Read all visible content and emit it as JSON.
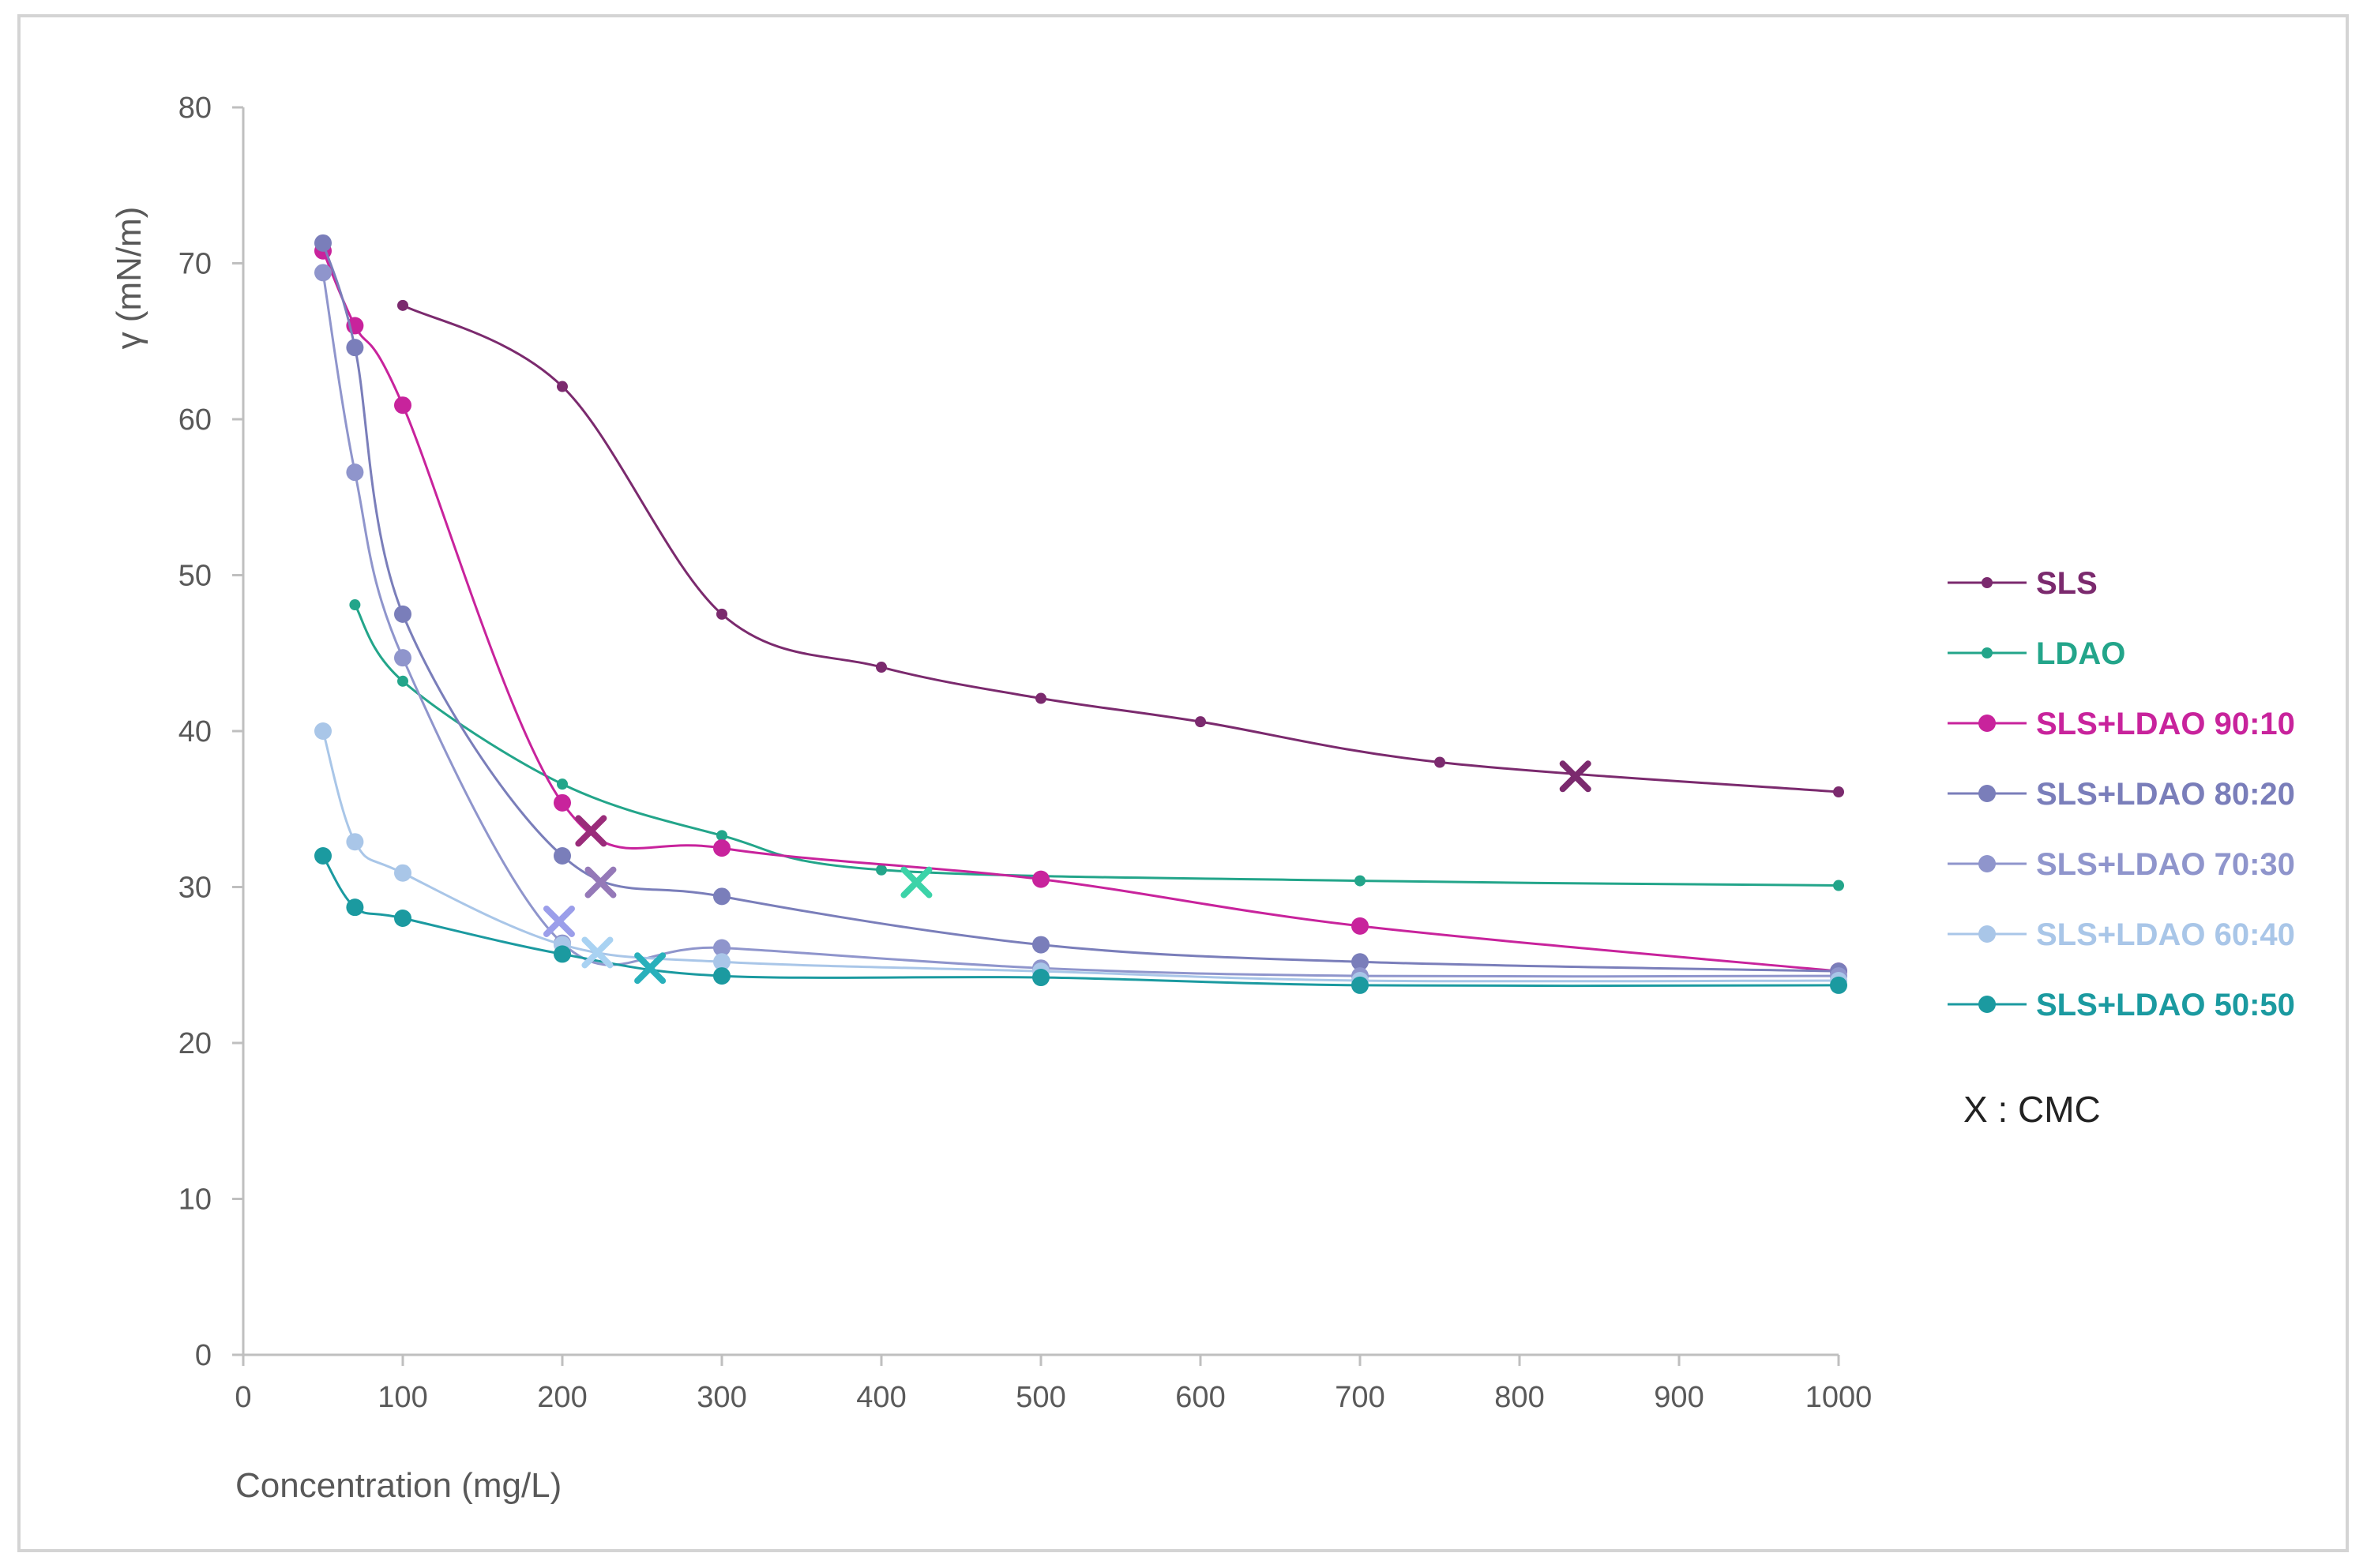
{
  "chart_data": {
    "type": "line",
    "title": "",
    "xlabel": "Concentration (mg/L)",
    "ylabel": "γ (mN/m)",
    "xlim": [
      0,
      1000
    ],
    "ylim": [
      0,
      80
    ],
    "x_ticks": [
      0,
      100,
      200,
      300,
      400,
      500,
      600,
      700,
      800,
      900,
      1000
    ],
    "y_ticks": [
      0,
      10,
      20,
      30,
      40,
      50,
      60,
      70,
      80
    ],
    "grid": false,
    "legend_position": "right",
    "cmc_note": "X : CMC",
    "series": [
      {
        "name": "SLS",
        "color": "#7b2a6e",
        "marker": "small",
        "points": [
          [
            100,
            67.3
          ],
          [
            200,
            62.1
          ],
          [
            300,
            47.5
          ],
          [
            400,
            44.1
          ],
          [
            500,
            42.1
          ],
          [
            600,
            40.6
          ],
          [
            750,
            38.0
          ],
          [
            1000,
            36.1
          ]
        ],
        "cmc": [
          835,
          37.1
        ]
      },
      {
        "name": "LDAO",
        "color": "#23a58a",
        "marker": "small",
        "points": [
          [
            70,
            48.1
          ],
          [
            100,
            43.2
          ],
          [
            200,
            36.6
          ],
          [
            300,
            33.3
          ],
          [
            400,
            31.1
          ],
          [
            700,
            30.4
          ],
          [
            1000,
            30.1
          ]
        ],
        "cmc": [
          422,
          30.3
        ]
      },
      {
        "name": "SLS+LDAO 90:10",
        "color": "#c8239c",
        "marker": "large",
        "points": [
          [
            50,
            70.8
          ],
          [
            70,
            66.0
          ],
          [
            100,
            60.9
          ],
          [
            200,
            35.4
          ],
          [
            300,
            32.5
          ],
          [
            500,
            30.5
          ],
          [
            700,
            27.5
          ],
          [
            1000,
            24.6
          ]
        ],
        "cmc": [
          218,
          33.6
        ]
      },
      {
        "name": "SLS+LDAO 80:20",
        "color": "#7a7eba",
        "marker": "large",
        "points": [
          [
            50,
            71.3
          ],
          [
            70,
            64.6
          ],
          [
            100,
            47.5
          ],
          [
            200,
            32.0
          ],
          [
            300,
            29.4
          ],
          [
            500,
            26.3
          ],
          [
            700,
            25.2
          ],
          [
            1000,
            24.6
          ]
        ],
        "cmc": [
          224,
          30.3
        ]
      },
      {
        "name": "SLS+LDAO 70:30",
        "color": "#8f95cc",
        "marker": "large",
        "points": [
          [
            50,
            69.4
          ],
          [
            70,
            56.6
          ],
          [
            100,
            44.7
          ],
          [
            200,
            26.4
          ],
          [
            300,
            26.1
          ],
          [
            500,
            24.8
          ],
          [
            700,
            24.3
          ],
          [
            1000,
            24.3
          ]
        ],
        "cmc": [
          198,
          27.8
        ]
      },
      {
        "name": "SLS+LDAO 60:40",
        "color": "#a9c6e8",
        "marker": "large",
        "points": [
          [
            50,
            40.0
          ],
          [
            70,
            32.9
          ],
          [
            100,
            30.9
          ],
          [
            200,
            26.3
          ],
          [
            300,
            25.2
          ],
          [
            500,
            24.6
          ],
          [
            700,
            24.0
          ],
          [
            1000,
            24.0
          ]
        ],
        "cmc": [
          222,
          25.8
        ]
      },
      {
        "name": "SLS+LDAO 50:50",
        "color": "#1b9aa0",
        "marker": "large",
        "points": [
          [
            50,
            32.0
          ],
          [
            70,
            28.7
          ],
          [
            100,
            28.0
          ],
          [
            200,
            25.7
          ],
          [
            300,
            24.3
          ],
          [
            500,
            24.2
          ],
          [
            700,
            23.7
          ],
          [
            1000,
            23.7
          ]
        ],
        "cmc": [
          255,
          24.8
        ]
      }
    ],
    "cmc_colors": {
      "SLS": "#7b2a6e",
      "LDAO": "#3cd3a8",
      "SLS+LDAO 90:10": "#9a2c7a",
      "SLS+LDAO 80:20": "#9579b8",
      "SLS+LDAO 70:30": "#9b9eea",
      "SLS+LDAO 60:40": "#a9d2f2",
      "SLS+LDAO 50:50": "#28b0bb"
    }
  }
}
